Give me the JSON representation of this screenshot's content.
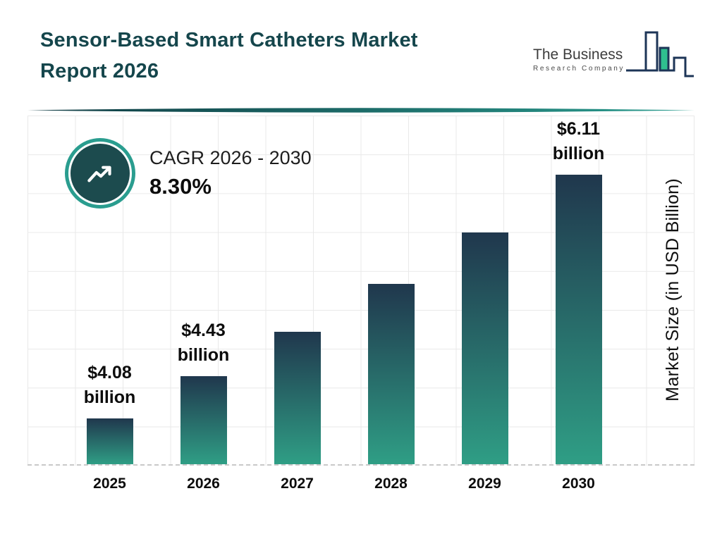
{
  "header": {
    "title_line1": "Sensor-Based Smart Catheters Market",
    "title_line2": "Report 2026",
    "logo": {
      "line1": "The Business",
      "line2": "Research Company"
    }
  },
  "cagr": {
    "label": "CAGR 2026 - 2030",
    "value": "8.30%"
  },
  "chart_data": {
    "type": "bar",
    "title": "Sensor-Based Smart Catheters Market Report 2026",
    "categories": [
      "2025",
      "2026",
      "2027",
      "2028",
      "2029",
      "2030"
    ],
    "values": [
      4.08,
      4.43,
      4.8,
      5.2,
      5.63,
      6.11
    ],
    "value_labels": [
      {
        "amount": "$4.08",
        "unit": "billion"
      },
      {
        "amount": "$4.43",
        "unit": "billion"
      },
      null,
      null,
      null,
      {
        "amount": "$6.11",
        "unit": "billion"
      }
    ],
    "xlabel": "",
    "ylabel": "Market Size (in USD Billion)",
    "ylim": [
      3.7,
      6.6
    ],
    "grid": true,
    "legend": false
  },
  "icons": {
    "trend-up-icon": "zigzag line-chart arrow rising to upper right",
    "logo-bars-icon": "outlined bar chart with one green filled bar"
  },
  "colors": {
    "title": "#15464c",
    "accent_teal": "#2a9d8f",
    "icon_circle": "#1c4b4e",
    "bar_top": "#20374d",
    "bar_bottom": "#2f9e85",
    "divider_start": "#0f3a42",
    "divider_end": "#2a9d8f",
    "logo_navy": "#1d3557",
    "logo_green": "#2fbf8f",
    "grid_line": "#e9e9e9",
    "baseline_dash": "#c9c9c9",
    "text_black": "#0c0c0c"
  }
}
